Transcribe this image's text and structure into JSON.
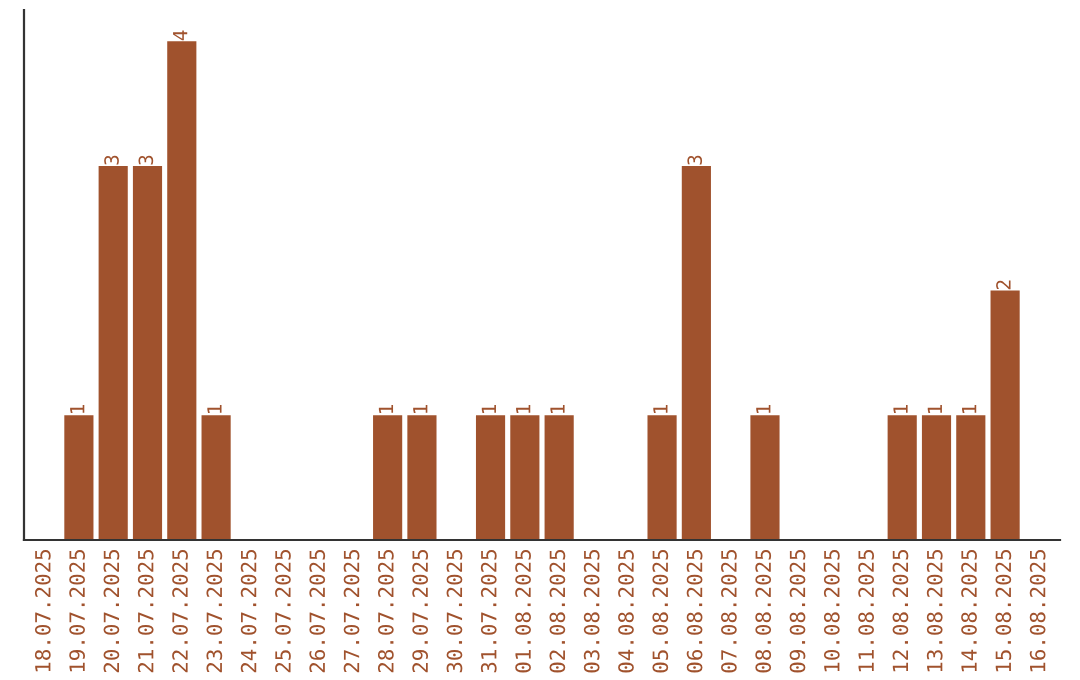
{
  "chart_data": {
    "type": "bar",
    "categories": [
      "18.07.2025",
      "19.07.2025",
      "20.07.2025",
      "21.07.2025",
      "22.07.2025",
      "23.07.2025",
      "24.07.2025",
      "25.07.2025",
      "26.07.2025",
      "27.07.2025",
      "28.07.2025",
      "29.07.2025",
      "30.07.2025",
      "31.07.2025",
      "01.08.2025",
      "02.08.2025",
      "03.08.2025",
      "04.08.2025",
      "05.08.2025",
      "06.08.2025",
      "07.08.2025",
      "08.08.2025",
      "09.08.2025",
      "10.08.2025",
      "11.08.2025",
      "12.08.2025",
      "13.08.2025",
      "14.08.2025",
      "15.08.2025",
      "16.08.2025"
    ],
    "values": [
      0,
      1,
      3,
      3,
      4,
      1,
      0,
      0,
      0,
      0,
      1,
      1,
      0,
      1,
      1,
      1,
      0,
      0,
      1,
      3,
      0,
      1,
      0,
      0,
      0,
      1,
      1,
      1,
      2,
      0
    ],
    "value_labels": [
      null,
      "1",
      "3",
      "3",
      "4",
      "1",
      null,
      null,
      null,
      null,
      "1",
      "1",
      null,
      "1",
      "1",
      "1",
      null,
      null,
      "1",
      "3",
      null,
      "1",
      null,
      null,
      null,
      "1",
      "1",
      "1",
      "2",
      null
    ],
    "color": "#a0522d",
    "ylim": [
      0,
      4.25
    ],
    "tick_labels": "x",
    "grid": false,
    "legend": false
  }
}
